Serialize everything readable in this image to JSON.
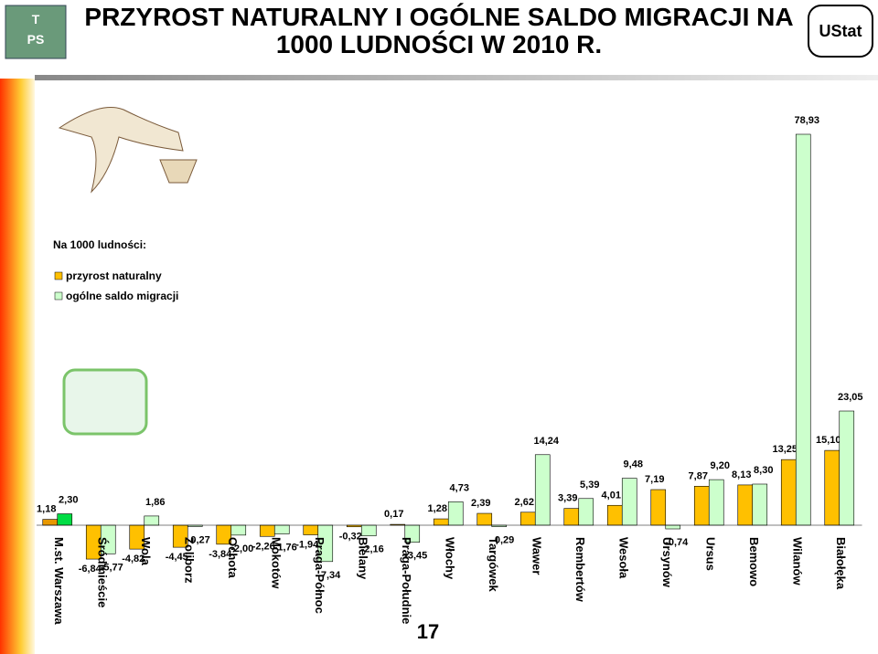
{
  "header": {
    "logo_left_top": "T",
    "logo_left_bottom": "PS",
    "logo_right": "UStat"
  },
  "page_number": "17",
  "chart_data": {
    "type": "bar",
    "title": "PRZYROST NATURALNY I OGÓLNE SALDO MIGRACJI NA 1000 LUDNOŚCI W 2010 R.",
    "legend_title": "Na 1000 ludności:",
    "categories": [
      "M.st. Warszawa",
      "Śródmieście",
      "Wola",
      "Żoliborz",
      "Ochota",
      "Mokotów",
      "Praga-Północ",
      "Bielany",
      "Praga-Południe",
      "Włochy",
      "Targówek",
      "Wawer",
      "Rembertów",
      "Wesoła",
      "Ursynów",
      "Ursus",
      "Bemowo",
      "Wilanów",
      "Białołęka"
    ],
    "series": [
      {
        "name": "przyrost naturalny",
        "color": "#ffc000",
        "colors": [
          "#e89800",
          "#ffc000",
          "#ffc000",
          "#ffc000",
          "#ffc000",
          "#ffc000",
          "#ffc000",
          "#ffc000",
          "#ffc000",
          "#ffc000",
          "#ffc000",
          "#ffc000",
          "#ffc000",
          "#ffc000",
          "#ffc000",
          "#ffc000",
          "#ffc000",
          "#ffc000",
          "#ffc000"
        ],
        "values": [
          1.18,
          -6.84,
          -4.82,
          -4.45,
          -3.84,
          -2.26,
          -1.94,
          -0.32,
          0.17,
          1.28,
          2.39,
          2.62,
          3.39,
          4.01,
          7.19,
          7.87,
          8.13,
          13.25,
          15.1
        ],
        "value_labels": [
          "1,18",
          "-6,84",
          "-4,82",
          "-4,45",
          "-3,84",
          "-2,26",
          "-1,94",
          "-0,32",
          "0,17",
          "1,28",
          "2,39",
          "2,62",
          "3,39",
          "4,01",
          "7,19",
          "7,87",
          "8,13",
          "13,25",
          "15,10"
        ]
      },
      {
        "name": "ogólne saldo migracji",
        "color": "#ccffcc",
        "colors": [
          "#00dd44",
          "#ccffcc",
          "#ccffcc",
          "#ccffcc",
          "#ccffcc",
          "#ccffcc",
          "#ccffcc",
          "#ccffcc",
          "#ccffcc",
          "#ccffcc",
          "#ccffcc",
          "#ccffcc",
          "#ccffcc",
          "#ccffcc",
          "#ccffcc",
          "#ccffcc",
          "#ccffcc",
          "#ccffcc",
          "#ccffcc"
        ],
        "values": [
          2.3,
          -5.77,
          1.86,
          -0.27,
          -2.0,
          -1.76,
          -7.34,
          -2.16,
          -3.45,
          4.73,
          -0.29,
          14.24,
          5.39,
          9.48,
          -0.74,
          9.2,
          8.3,
          78.93,
          23.05
        ],
        "value_labels": [
          "2,30",
          "-5,77",
          "1,86",
          "-0,27",
          "-2,00",
          "-1,76",
          "-7,34",
          "-2,16",
          "-3,45",
          "4,73",
          "-0,29",
          "14,24",
          "5,39",
          "9,48",
          "-0,74",
          "9,20",
          "8,30",
          "78,93",
          "23,05"
        ]
      }
    ]
  }
}
